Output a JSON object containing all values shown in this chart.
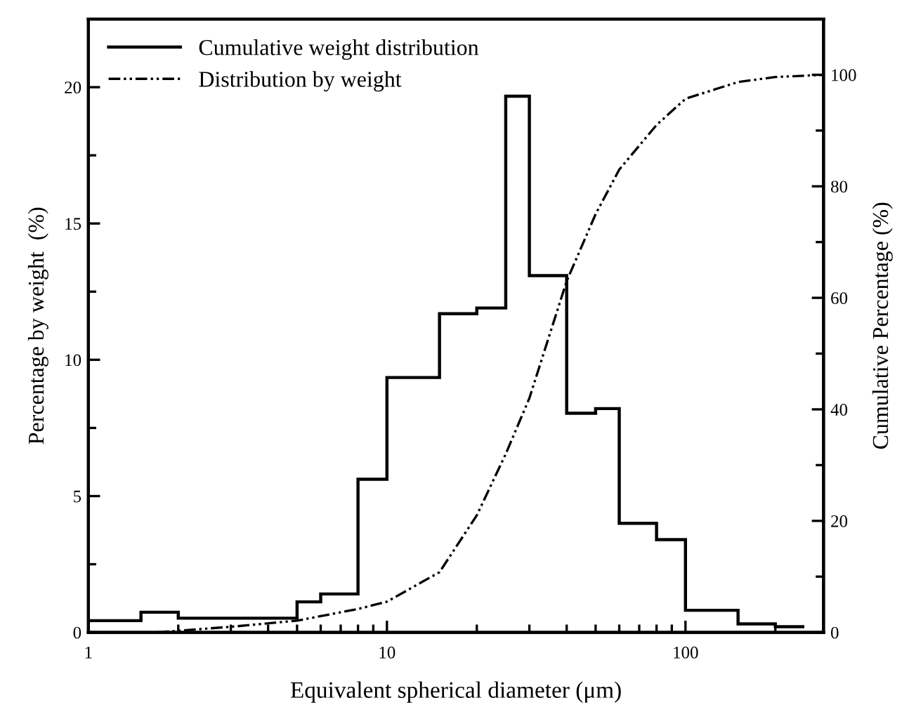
{
  "chart_data": {
    "type": "histogram",
    "xlabel": "Equivalent spherical diameter (μm)",
    "ylabel": "Percentage by weight  (%)",
    "y2label": "Cumulative Percentage (%)",
    "log": "x",
    "xlim": [
      1,
      290
    ],
    "xticks": [
      1,
      10,
      100
    ],
    "ylim": [
      0,
      22.5
    ],
    "yticks": [
      0,
      5,
      10,
      15,
      20
    ],
    "y2lim": [
      0,
      110
    ],
    "y2ticks": [
      0,
      20,
      40,
      60,
      80,
      100
    ],
    "grid": false,
    "legend": "top left",
    "series": [
      {
        "name": "Cumulative weight distribution",
        "color": "#000000",
        "line_style": "solid",
        "bins": [
          1,
          1.5,
          2,
          5,
          6,
          8,
          10,
          15,
          20,
          25,
          30,
          40,
          50,
          60,
          80,
          100,
          150,
          200,
          250
        ],
        "values": [
          0.43,
          0.74,
          0.52,
          1.12,
          1.41,
          5.62,
          9.35,
          11.69,
          11.9,
          19.67,
          13.09,
          8.04,
          8.21,
          4.0,
          3.4,
          0.81,
          0.31,
          0.21
        ]
      },
      {
        "type": "line",
        "name": "Distribution by weight",
        "color": "#000000",
        "line_style": "dashed",
        "axis": "y2",
        "x": [
          1.7,
          2,
          3,
          5,
          8,
          10,
          15,
          20,
          25,
          30,
          40,
          50,
          60,
          80,
          100,
          150,
          200,
          290
        ],
        "values": [
          0,
          0.3,
          1,
          2.1,
          4.2,
          5.5,
          10.8,
          21,
          32,
          42,
          63,
          75,
          83,
          91,
          95.7,
          98.7,
          99.6,
          100
        ]
      }
    ]
  }
}
